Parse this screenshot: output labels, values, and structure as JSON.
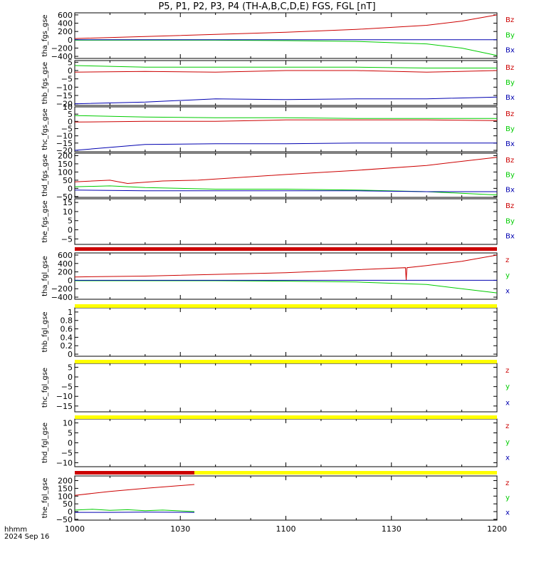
{
  "title": "P5, P1, P2, P3, P4 (TH-A,B,C,D,E) FGS, FGL [nT]",
  "footer": {
    "line1": "hhmm",
    "line2": "2024 Sep 16"
  },
  "colors": {
    "red": "#cc0000",
    "green": "#00cc00",
    "blue": "#0000b0",
    "yellow": "#ffff00",
    "black": "#000000"
  },
  "chart_data": {
    "type": "line",
    "xaxis": {
      "ticks": [
        "1000",
        "1030",
        "1100",
        "1130",
        "1200"
      ],
      "range_minutes": [
        0,
        120
      ]
    },
    "panels": [
      {
        "ylabel": "tha_fgs_gse",
        "ylim": [
          -450,
          650
        ],
        "yticks": [
          600,
          400,
          200,
          0,
          -200,
          -400
        ],
        "legend": [
          "Bz",
          "By",
          "Bx"
        ],
        "series": [
          {
            "color": "red",
            "x": [
              0,
              20,
              40,
              60,
              80,
              100,
              110,
              120
            ],
            "y": [
              30,
              80,
              130,
              180,
              250,
              350,
              450,
              600
            ]
          },
          {
            "color": "green",
            "x": [
              0,
              20,
              40,
              60,
              80,
              100,
              110,
              120
            ],
            "y": [
              -10,
              -10,
              -10,
              -20,
              -40,
              -100,
              -200,
              -380
            ]
          },
          {
            "color": "blue",
            "x": [
              0,
              30,
              60,
              90,
              120
            ],
            "y": [
              0,
              0,
              0,
              0,
              0
            ]
          }
        ]
      },
      {
        "ylabel": "thb_fgs_gse",
        "ylim": [
          -21,
          6
        ],
        "yticks": [
          5,
          0,
          -5,
          -10,
          -15,
          -20
        ],
        "legend": [
          "Bz",
          "By",
          "Bx"
        ],
        "series": [
          {
            "color": "green",
            "x": [
              0,
              20,
              40,
              60,
              80,
              100,
              120
            ],
            "y": [
              3,
              2,
              2,
              2,
              2,
              1.5,
              1.5
            ]
          },
          {
            "color": "red",
            "x": [
              0,
              20,
              40,
              60,
              80,
              100,
              120
            ],
            "y": [
              -1,
              -0.5,
              -1,
              0,
              0,
              -1,
              0
            ]
          },
          {
            "color": "blue",
            "x": [
              0,
              20,
              40,
              60,
              80,
              100,
              120
            ],
            "y": [
              -20,
              -19,
              -17,
              -17.5,
              -17,
              -17,
              -16
            ]
          }
        ]
      },
      {
        "ylabel": "thc_fgs_gse",
        "ylim": [
          -21,
          10
        ],
        "yticks": [
          10,
          5,
          0,
          -5,
          -10,
          -15,
          -20
        ],
        "legend": [
          "Bz",
          "By",
          "Bx"
        ],
        "series": [
          {
            "color": "green",
            "x": [
              0,
              20,
              40,
              60,
              80,
              100,
              120
            ],
            "y": [
              4,
              3,
              2.5,
              2.5,
              2,
              2,
              2
            ]
          },
          {
            "color": "red",
            "x": [
              0,
              20,
              40,
              60,
              80,
              100,
              120
            ],
            "y": [
              -0.5,
              0,
              0,
              1,
              1,
              1,
              0.5
            ]
          },
          {
            "color": "blue",
            "x": [
              0,
              20,
              40,
              60,
              80,
              100,
              120
            ],
            "y": [
              -20,
              -16,
              -15.5,
              -15.5,
              -15,
              -15,
              -15
            ]
          }
        ]
      },
      {
        "ylabel": "thd_fgs_gse",
        "ylim": [
          -55,
          215
        ],
        "yticks": [
          200,
          150,
          100,
          50,
          0,
          -50
        ],
        "legend": [
          "Bz",
          "By",
          "Bx"
        ],
        "series": [
          {
            "color": "red",
            "x": [
              0,
              10,
              15,
              25,
              35,
              60,
              80,
              100,
              120
            ],
            "y": [
              40,
              50,
              30,
              45,
              50,
              85,
              110,
              140,
              190
            ]
          },
          {
            "color": "green",
            "x": [
              0,
              10,
              20,
              40,
              60,
              80,
              100,
              120
            ],
            "y": [
              10,
              15,
              5,
              -5,
              -5,
              -10,
              -20,
              -40
            ]
          },
          {
            "color": "blue",
            "x": [
              0,
              20,
              40,
              60,
              80,
              100,
              120
            ],
            "y": [
              -10,
              -15,
              -15,
              -15,
              -15,
              -20,
              -20
            ]
          }
        ]
      },
      {
        "ylabel": "the_fgs_gse",
        "ylim": [
          -8,
          17
        ],
        "yticks": [
          15,
          10,
          5,
          0,
          -5
        ],
        "legend": [
          "Bz",
          "By",
          "Bx"
        ],
        "series": []
      },
      {
        "ylabel": "tha_fgl_gse",
        "ylim": [
          -450,
          650
        ],
        "yticks": [
          600,
          400,
          200,
          0,
          -200,
          -400
        ],
        "legend": [
          "z",
          "y",
          "x"
        ],
        "series": [
          {
            "color": "red",
            "x": [
              0,
              20,
              40,
              60,
              80,
              94,
              94.2,
              94.4,
              100,
              110,
              120
            ],
            "y": [
              80,
              100,
              140,
              180,
              250,
              300,
              0,
              300,
              350,
              450,
              600
            ]
          },
          {
            "color": "green",
            "x": [
              0,
              20,
              40,
              60,
              80,
              100,
              110,
              120
            ],
            "y": [
              -10,
              -10,
              -10,
              -20,
              -40,
              -100,
              -200,
              -300
            ]
          },
          {
            "color": "blue",
            "x": [
              0,
              30,
              60,
              90,
              120
            ],
            "y": [
              0,
              0,
              0,
              0,
              0
            ]
          }
        ]
      },
      {
        "ylabel": "thb_fgl_gse",
        "ylim": [
          -0.05,
          1.1
        ],
        "yticks": [
          1.0,
          0.8,
          0.6,
          0.4,
          0.2,
          0.0
        ],
        "legend": [],
        "series": []
      },
      {
        "ylabel": "thc_fgl_gse",
        "ylim": [
          -18,
          7
        ],
        "yticks": [
          5,
          0,
          -5,
          -10,
          -15
        ],
        "legend": [
          "z",
          "y",
          "x"
        ],
        "series": []
      },
      {
        "ylabel": "thd_fgl_gse",
        "ylim": [
          -12,
          12
        ],
        "yticks": [
          10,
          5,
          0,
          -5,
          -10
        ],
        "legend": [
          "z",
          "y",
          "x"
        ],
        "series": []
      },
      {
        "ylabel": "the_fgl_gse",
        "ylim": [
          -55,
          230
        ],
        "yticks": [
          200,
          150,
          100,
          50,
          0,
          -50
        ],
        "legend": [
          "z",
          "y",
          "x"
        ],
        "series": [
          {
            "color": "red",
            "x": [
              0,
              10,
              20,
              34
            ],
            "y": [
              105,
              130,
              150,
              175
            ]
          },
          {
            "color": "green",
            "x": [
              0,
              5,
              10,
              15,
              20,
              25,
              34
            ],
            "y": [
              10,
              15,
              8,
              12,
              6,
              10,
              0
            ]
          },
          {
            "color": "blue",
            "x": [
              0,
              10,
              20,
              34
            ],
            "y": [
              -5,
              -5,
              -3,
              -5
            ]
          }
        ]
      }
    ],
    "bars": [
      {
        "after_panel": 4,
        "color": "red",
        "x": [
          0,
          120
        ]
      },
      {
        "after_panel": 5,
        "color": "yellow",
        "x": [
          0,
          120
        ]
      },
      {
        "after_panel": 6,
        "color": "yellow",
        "x": [
          0,
          120
        ]
      },
      {
        "after_panel": 7,
        "color": "yellow",
        "x": [
          0,
          120
        ]
      },
      {
        "after_panel": 8,
        "color": "red",
        "x": [
          0,
          34
        ]
      },
      {
        "after_panel": 8,
        "color": "yellow",
        "x": [
          34,
          120
        ]
      }
    ]
  }
}
